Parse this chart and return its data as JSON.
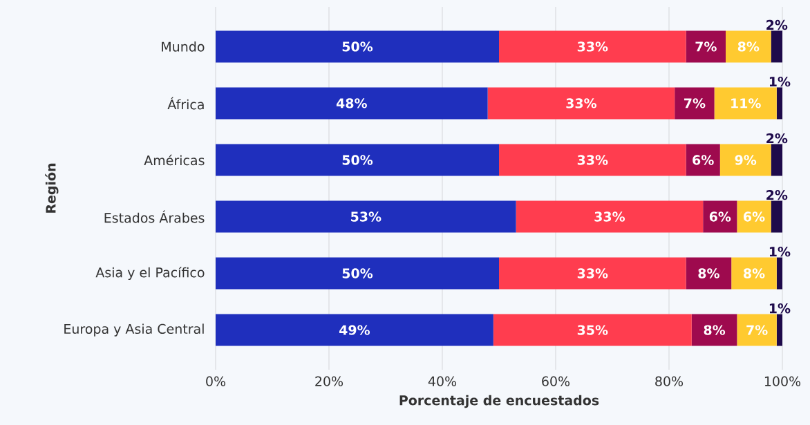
{
  "chart_data": {
    "type": "bar",
    "orientation": "horizontal",
    "stacked": true,
    "xlabel": "Porcentaje de encuestados",
    "ylabel": "Región",
    "categories": [
      "Mundo",
      "África",
      "Américas",
      "Estados Árabes",
      "Asia y el Pacífico",
      "Europa y Asia Central"
    ],
    "series": [
      {
        "color": "#1f2fbd",
        "values": [
          50,
          48,
          50,
          53,
          50,
          49
        ],
        "value_labels": [
          "50%",
          "48%",
          "50%",
          "53%",
          "50%",
          "49%"
        ]
      },
      {
        "color": "#ff3d4f",
        "values": [
          33,
          33,
          33,
          33,
          33,
          35
        ],
        "value_labels": [
          "33%",
          "33%",
          "33%",
          "33%",
          "33%",
          "35%"
        ]
      },
      {
        "color": "#9e0a4e",
        "values": [
          7,
          7,
          6,
          6,
          8,
          8
        ],
        "value_labels": [
          "7%",
          "7%",
          "6%",
          "6%",
          "8%",
          "8%"
        ]
      },
      {
        "color": "#ffca30",
        "values": [
          8,
          11,
          9,
          6,
          8,
          7
        ],
        "value_labels": [
          "8%",
          "11%",
          "9%",
          "6%",
          "8%",
          "7%"
        ]
      },
      {
        "color": "#1e0a4b",
        "values": [
          2,
          1,
          2,
          2,
          1,
          1
        ],
        "value_labels": [
          "2%",
          "1%",
          "2%",
          "2%",
          "1%",
          "1%"
        ]
      }
    ],
    "xlim": [
      0,
      100
    ],
    "xticks": [
      {
        "value": 0,
        "label": "0%"
      },
      {
        "value": 20,
        "label": "20%"
      },
      {
        "value": 40,
        "label": "40%"
      },
      {
        "value": 60,
        "label": "60%"
      },
      {
        "value": 80,
        "label": "80%"
      },
      {
        "value": 100,
        "label": "100%"
      }
    ],
    "grid": "x"
  }
}
